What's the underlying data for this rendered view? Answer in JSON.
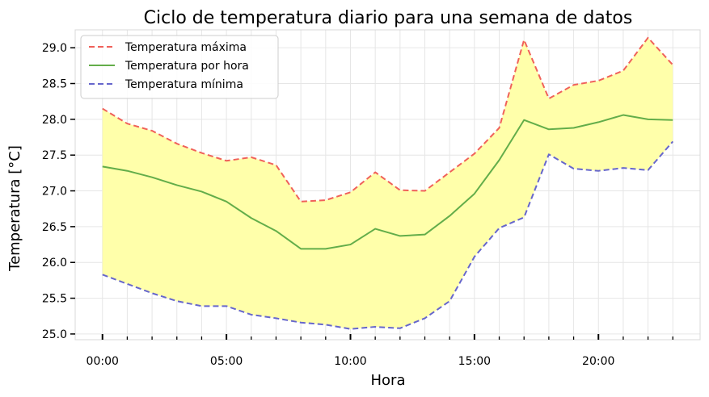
{
  "chart_data": {
    "type": "line",
    "title": "Ciclo de temperatura diario para una semana de datos",
    "xlabel": "Hora",
    "ylabel": "Temperatura [°C]",
    "x": [
      0,
      1,
      2,
      3,
      4,
      5,
      6,
      7,
      8,
      9,
      10,
      11,
      12,
      13,
      14,
      15,
      16,
      17,
      18,
      19,
      20,
      21,
      22,
      23
    ],
    "xticks": [
      0,
      5,
      10,
      15,
      20
    ],
    "xtick_labels": [
      "00:00",
      "05:00",
      "10:00",
      "15:00",
      "20:00"
    ],
    "xlim": [
      -1.1,
      24.1
    ],
    "yticks": [
      25.0,
      25.5,
      26.0,
      26.5,
      27.0,
      27.5,
      28.0,
      28.5,
      29.0
    ],
    "ytick_labels": [
      "25.0",
      "25.5",
      "26.0",
      "26.5",
      "27.0",
      "27.5",
      "28.0",
      "28.5",
      "29.0"
    ],
    "ylim": [
      24.92,
      29.25
    ],
    "grid": true,
    "legend_position": "upper-left",
    "fill_between": {
      "lower": "Temperatura mínima",
      "upper": "Temperatura máxima",
      "color": "#ffffaa"
    },
    "series": [
      {
        "name": "Temperatura máxima",
        "style": "dashed",
        "color": "#f0615a",
        "values": [
          28.15,
          27.94,
          27.84,
          27.66,
          27.53,
          27.42,
          27.47,
          27.36,
          26.85,
          26.87,
          26.98,
          27.26,
          27.01,
          27.0,
          27.26,
          27.52,
          27.88,
          29.11,
          28.29,
          28.48,
          28.54,
          28.68,
          29.14,
          28.76
        ]
      },
      {
        "name": "Temperatura por hora",
        "style": "solid",
        "color": "#63ad4a",
        "values": [
          27.34,
          27.28,
          27.19,
          27.08,
          26.99,
          26.85,
          26.62,
          26.44,
          26.19,
          26.19,
          26.25,
          26.47,
          26.37,
          26.39,
          26.65,
          26.96,
          27.43,
          27.99,
          27.86,
          27.88,
          27.96,
          28.06,
          28.0,
          27.99
        ]
      },
      {
        "name": "Temperatura mínima",
        "style": "dashed",
        "color": "#6666cc",
        "values": [
          25.83,
          25.7,
          25.57,
          25.46,
          25.39,
          25.39,
          25.27,
          25.22,
          25.16,
          25.13,
          25.07,
          25.1,
          25.08,
          25.22,
          25.46,
          26.08,
          26.48,
          26.63,
          27.51,
          27.31,
          27.28,
          27.32,
          27.29,
          27.69
        ]
      }
    ]
  }
}
